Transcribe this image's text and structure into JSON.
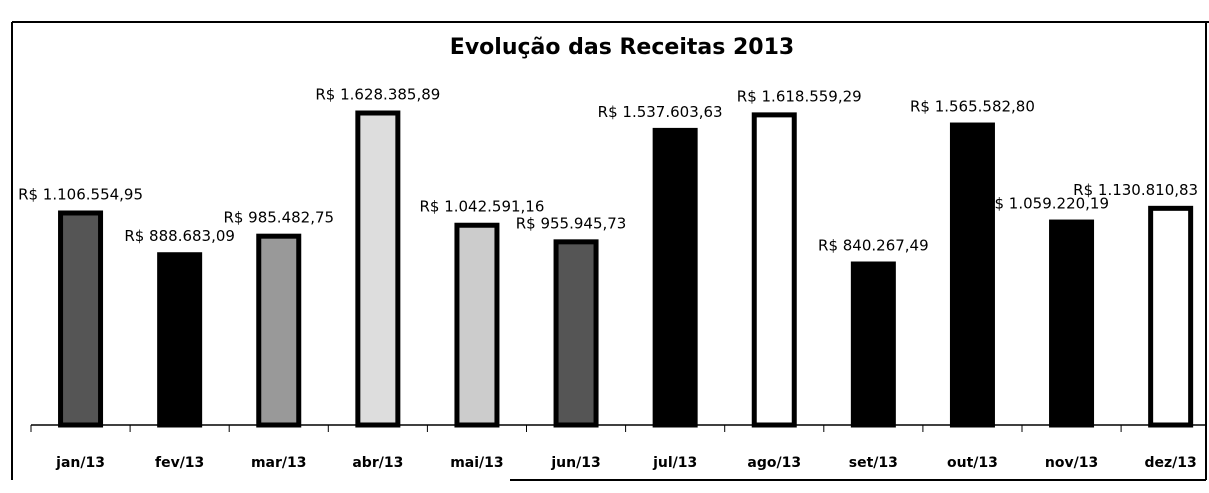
{
  "chart_data": {
    "type": "bar",
    "title": "Evolução das Receitas 2013",
    "categories": [
      "jan/13",
      "fev/13",
      "mar/13",
      "abr/13",
      "mai/13",
      "jun/13",
      "jul/13",
      "ago/13",
      "set/13",
      "out/13",
      "nov/13",
      "dez/13"
    ],
    "values": [
      1106554.95,
      888683.09,
      985482.75,
      1628385.89,
      1042591.16,
      955945.73,
      1537603.63,
      1618559.29,
      840267.49,
      1565582.8,
      1059220.19,
      1130810.83
    ],
    "value_labels": [
      "R$ 1.106.554,95",
      "R$ 888.683,09",
      "R$ 985.482,75",
      "R$ 1.628.385,89",
      "R$ 1.042.591,16",
      "R$ 955.945,73",
      "R$ 1.537.603,63",
      "R$ 1.618.559,29",
      "R$ 840.267,49",
      "R$ 1.565.582,80",
      "R$ 1.059.220,19",
      "R$ 1.130.810,83"
    ],
    "colors": [
      "#555555",
      "#000000",
      "#999999",
      "#dddddd",
      "#cccccc",
      "#555555",
      "#000000",
      "#ffffff",
      "#000000",
      "#000000",
      "#000000",
      "#ffffff"
    ]
  }
}
